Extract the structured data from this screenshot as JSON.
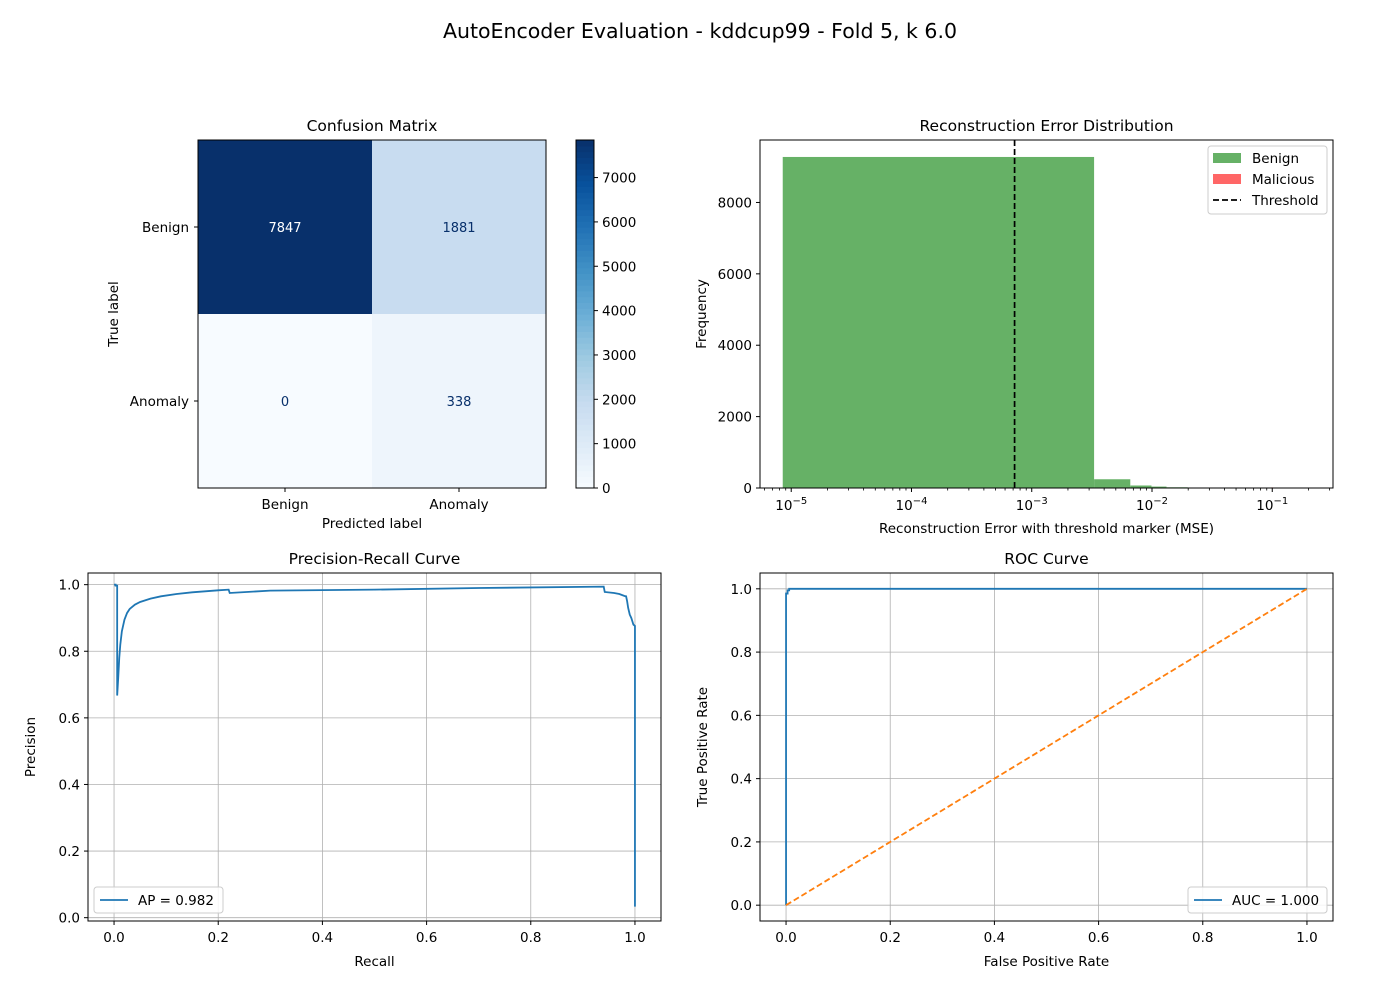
{
  "figure_title": "AutoEncoder Evaluation - kddcup99 - Fold 5, k 6.0",
  "chart_data": [
    {
      "type": "heatmap",
      "title": "Confusion Matrix",
      "xlabel": "Predicted label",
      "ylabel": "True label",
      "x_categories": [
        "Benign",
        "Anomaly"
      ],
      "y_categories": [
        "Benign",
        "Anomaly"
      ],
      "values": [
        [
          7847,
          1881
        ],
        [
          0,
          338
        ]
      ],
      "cell_labels": [
        [
          "7847",
          "1881"
        ],
        [
          "0",
          "338"
        ]
      ],
      "colormap": "Blues",
      "colorbar": {
        "min": 0,
        "max": 7847,
        "ticks": [
          0,
          1000,
          2000,
          3000,
          4000,
          5000,
          6000,
          7000
        ]
      }
    },
    {
      "type": "bar",
      "title": "Reconstruction Error Distribution",
      "xlabel": "Reconstruction Error with threshold marker (MSE)",
      "ylabel": "Frequency",
      "x_scale": "log",
      "xlim": [
        5.5e-06,
        0.32
      ],
      "ylim": [
        0,
        9750
      ],
      "x_ticks": [
        {
          "value": 1e-05,
          "base": "10",
          "exp": "−5"
        },
        {
          "value": 0.0001,
          "base": "10",
          "exp": "−4"
        },
        {
          "value": 0.001,
          "base": "10",
          "exp": "−3"
        },
        {
          "value": 0.01,
          "base": "10",
          "exp": "−2"
        },
        {
          "value": 0.1,
          "base": "10",
          "exp": "−1"
        }
      ],
      "y_ticks": [
        0,
        2000,
        4000,
        6000,
        8000
      ],
      "series": [
        {
          "name": "Benign",
          "color": "#66b166",
          "bins": [
            {
              "x0": 8.5e-06,
              "x1": 0.0033,
              "count": 9275
            },
            {
              "x0": 0.0033,
              "x1": 0.0066,
              "count": 245
            },
            {
              "x0": 0.0066,
              "x1": 0.0099,
              "count": 70
            },
            {
              "x0": 0.0099,
              "x1": 0.0132,
              "count": 40
            },
            {
              "x0": 0.0132,
              "x1": 0.0198,
              "count": 20
            },
            {
              "x0": 0.0198,
              "x1": 0.033,
              "count": 10
            },
            {
              "x0": 0.033,
              "x1": 0.066,
              "count": 5
            }
          ]
        },
        {
          "name": "Malicious",
          "color": "#ff6666",
          "bins": [
            {
              "x0": 0.099,
              "x1": 0.1005,
              "count": 20
            },
            {
              "x0": 0.155,
              "x1": 0.165,
              "count": 5
            }
          ]
        }
      ],
      "threshold": {
        "name": "Threshold",
        "value": 0.00072
      },
      "legend_position": "upper right"
    },
    {
      "type": "line",
      "title": "Precision-Recall Curve",
      "xlabel": "Recall",
      "ylabel": "Precision",
      "xlim": [
        -0.05,
        1.05
      ],
      "ylim": [
        -0.01,
        1.035
      ],
      "x_ticks": [
        0.0,
        0.2,
        0.4,
        0.6,
        0.8,
        1.0
      ],
      "y_ticks": [
        0.0,
        0.2,
        0.4,
        0.6,
        0.8,
        1.0
      ],
      "grid": true,
      "series": [
        {
          "name": "AP = 0.982",
          "color": "#1f77b4",
          "x": [
            0.0,
            0.003,
            0.003,
            0.006,
            0.006,
            0.008,
            0.01,
            0.012,
            0.015,
            0.02,
            0.025,
            0.03,
            0.04,
            0.05,
            0.07,
            0.09,
            0.12,
            0.15,
            0.2,
            0.22,
            0.222,
            0.3,
            0.5,
            0.7,
            0.94,
            0.942,
            0.96,
            0.97,
            0.98,
            0.983,
            0.985,
            0.987,
            0.99,
            0.993,
            0.995,
            0.997,
            1.0,
            1.0
          ],
          "y": [
            1.0,
            1.0,
            0.997,
            0.997,
            0.667,
            0.72,
            0.78,
            0.82,
            0.86,
            0.895,
            0.915,
            0.927,
            0.94,
            0.948,
            0.958,
            0.965,
            0.972,
            0.977,
            0.983,
            0.985,
            0.975,
            0.982,
            0.985,
            0.99,
            0.994,
            0.978,
            0.975,
            0.972,
            0.966,
            0.965,
            0.95,
            0.93,
            0.91,
            0.9,
            0.89,
            0.88,
            0.876,
            0.033
          ]
        }
      ],
      "legend_position": "lower left"
    },
    {
      "type": "line",
      "title": "ROC Curve",
      "xlabel": "False Positive Rate",
      "ylabel": "True Positive Rate",
      "xlim": [
        -0.05,
        1.05
      ],
      "ylim": [
        -0.05,
        1.05
      ],
      "x_ticks": [
        0.0,
        0.2,
        0.4,
        0.6,
        0.8,
        1.0
      ],
      "y_ticks": [
        0.0,
        0.2,
        0.4,
        0.6,
        0.8,
        1.0
      ],
      "grid": true,
      "series": [
        {
          "name": "AUC = 1.000",
          "color": "#1f77b4",
          "x": [
            0.0,
            0.0,
            0.003,
            0.003,
            0.006,
            0.006,
            1.0
          ],
          "y": [
            0.0,
            0.985,
            0.985,
            0.995,
            0.995,
            1.0,
            1.0
          ]
        },
        {
          "color": "#ff7f0e",
          "dashed": true,
          "x": [
            0.0,
            1.0
          ],
          "y": [
            0.0,
            1.0
          ]
        }
      ],
      "legend_position": "lower right"
    }
  ]
}
